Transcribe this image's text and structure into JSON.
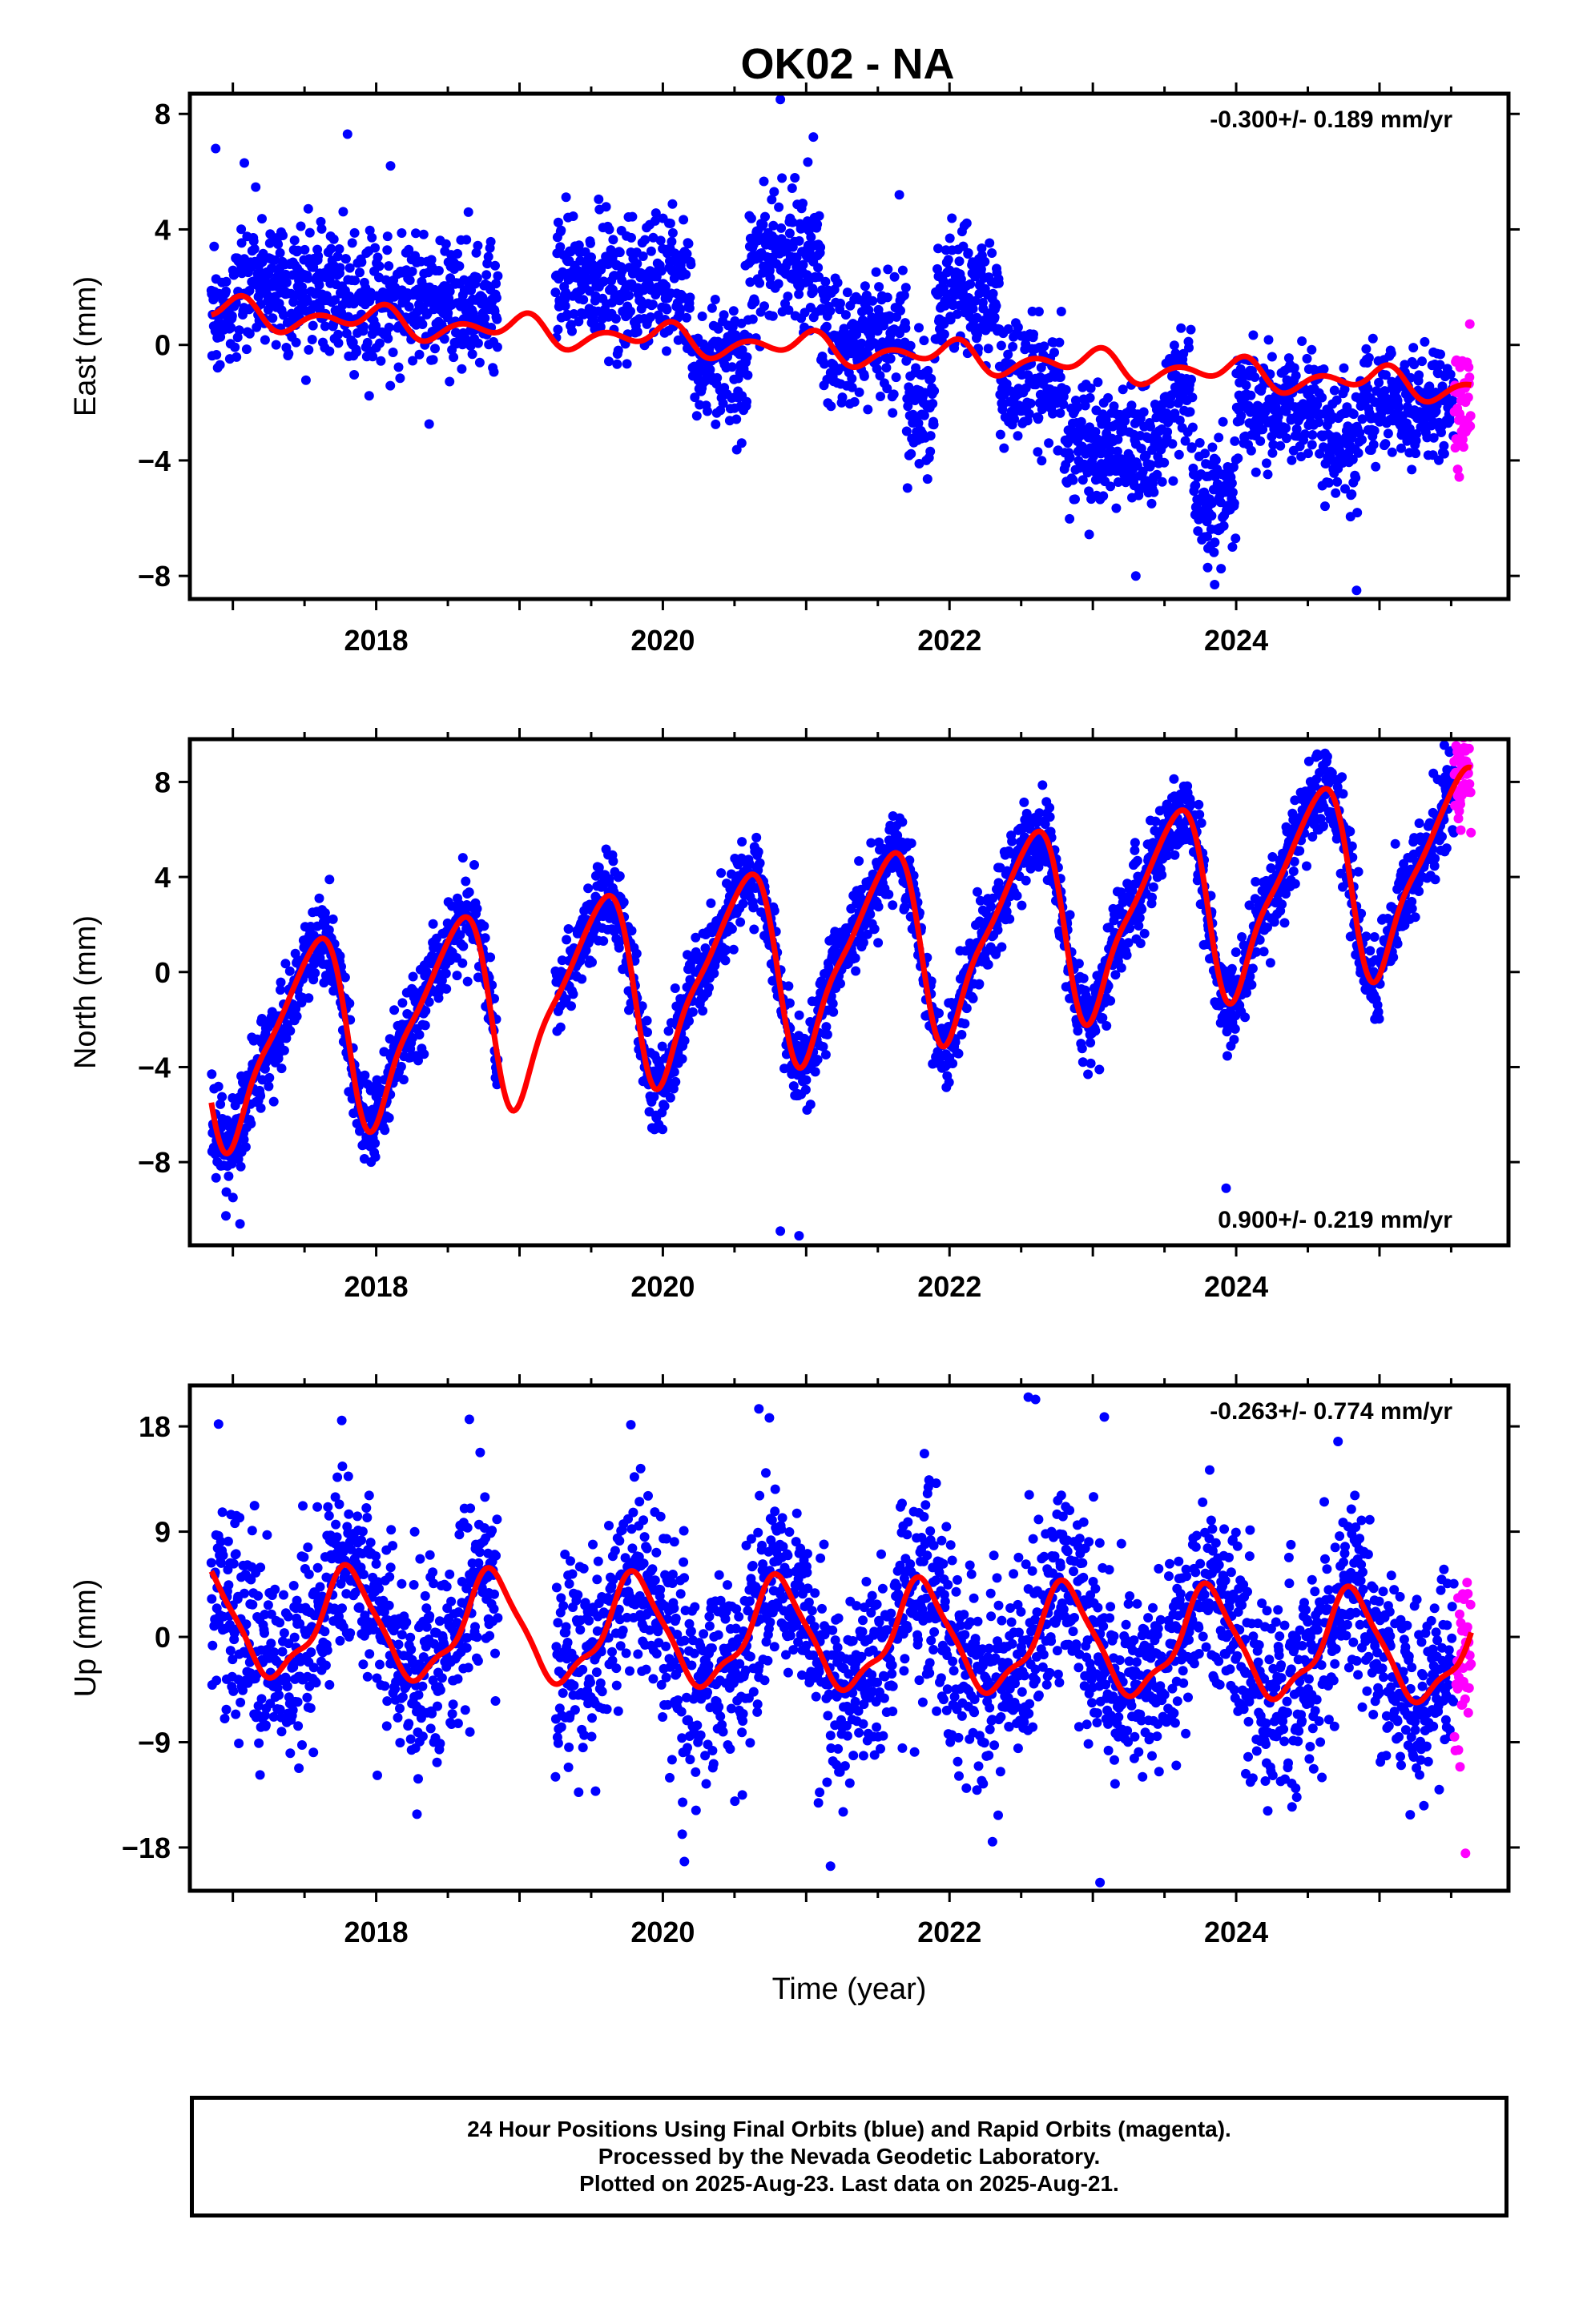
{
  "figure": {
    "title": "OK02 - NA"
  },
  "footer": {
    "line1": "24 Hour Positions Using Final Orbits (blue) and Rapid Orbits (magenta).",
    "line2": "Processed by the Nevada Geodetic Laboratory.",
    "line3": "Plotted on 2025-Aug-23. Last data on 2025-Aug-21."
  },
  "colors": {
    "final": "#0000ff",
    "rapid": "#ff00ff",
    "model": "#ff0000",
    "frame": "#000000"
  },
  "chart_data": [
    {
      "type": "scatter",
      "ylabel": "East (mm)",
      "xlim": [
        2016.7,
        2025.9
      ],
      "ylim": [
        -8.8,
        8.7
      ],
      "yticks": [
        -8,
        -4,
        0,
        4,
        8
      ],
      "xticks": [
        2018,
        2020,
        2022,
        2024
      ],
      "rate_label": "-0.300+/- 0.189 mm/yr",
      "rate_position": "top-right",
      "data_start": 2016.85,
      "data_end": 2025.64,
      "rapid_start": 2025.52,
      "gaps": [
        [
          2018.85,
          2019.25
        ]
      ],
      "model": {
        "offset": 1.1,
        "rate": -0.3,
        "annual_amp": 0.3,
        "annual_phase": 0.7,
        "semiannual_amp": 0.35,
        "semiannual_phase": 0.45,
        "sub_amp": 0.05,
        "ref_epoch": 2017.0
      },
      "scatter_segments": [
        [
          2016.85,
          2017.0,
          0.9,
          1.0
        ],
        [
          2017.0,
          2017.8,
          2.0,
          1.3
        ],
        [
          2017.8,
          2018.85,
          1.4,
          1.2
        ],
        [
          2019.25,
          2020.2,
          2.2,
          1.3
        ],
        [
          2020.2,
          2020.6,
          -0.6,
          1.0
        ],
        [
          2020.6,
          2021.1,
          2.8,
          1.3
        ],
        [
          2021.1,
          2021.7,
          0.2,
          1.2
        ],
        [
          2021.7,
          2021.9,
          -2.2,
          1.3
        ],
        [
          2021.9,
          2022.35,
          1.8,
          1.2
        ],
        [
          2022.35,
          2022.8,
          -1.2,
          1.2
        ],
        [
          2022.8,
          2023.5,
          -3.6,
          1.1
        ],
        [
          2023.5,
          2023.7,
          -1.8,
          1.2
        ],
        [
          2023.7,
          2024.0,
          -5.2,
          1.1
        ],
        [
          2024.0,
          2024.6,
          -2.0,
          1.1
        ],
        [
          2024.6,
          2024.85,
          -3.5,
          1.4
        ],
        [
          2024.85,
          2025.64,
          -2.0,
          1.0
        ]
      ],
      "outliers": [
        [
          2016.88,
          6.8
        ],
        [
          2017.08,
          6.3
        ],
        [
          2017.8,
          7.3
        ],
        [
          2018.1,
          6.2
        ],
        [
          2020.82,
          8.5
        ],
        [
          2021.05,
          7.2
        ],
        [
          2020.55,
          -3.4
        ],
        [
          2023.3,
          -8.0
        ],
        [
          2023.85,
          -8.3
        ],
        [
          2024.84,
          -8.5
        ],
        [
          2021.65,
          5.2
        ]
      ]
    },
    {
      "type": "scatter",
      "ylabel": "North (mm)",
      "xlim": [
        2016.7,
        2025.9
      ],
      "ylim": [
        -11.5,
        9.8
      ],
      "yticks": [
        -8,
        -4,
        0,
        4,
        8
      ],
      "xticks": [
        2018,
        2020,
        2022,
        2024
      ],
      "rate_label": "0.900+/- 0.219 mm/yr",
      "rate_position": "bottom-right",
      "data_start": 2016.85,
      "data_end": 2025.64,
      "rapid_start": 2025.52,
      "gaps": [
        [
          2018.85,
          2019.25
        ]
      ],
      "model": {
        "offset": -3.0,
        "rate": 0.9,
        "annual_amp": 3.7,
        "annual_phase": 0.28,
        "semiannual_amp": 1.2,
        "semiannual_phase": 0.05,
        "sub_amp": 0.25,
        "ref_epoch": 2017.0
      },
      "noise_sd": 0.9,
      "outliers": [
        [
          2017.05,
          -10.6
        ],
        [
          2020.82,
          -10.9
        ],
        [
          2020.95,
          -11.1
        ],
        [
          2023.93,
          -9.1
        ],
        [
          2025.6,
          9.3
        ]
      ]
    },
    {
      "type": "scatter",
      "ylabel": "Up (mm)",
      "xlim": [
        2016.7,
        2025.9
      ],
      "ylim": [
        -21.7,
        21.5
      ],
      "yticks": [
        -18,
        -9,
        0,
        9,
        18
      ],
      "xticks": [
        2018,
        2020,
        2022,
        2024
      ],
      "xlabel": "Time (year)",
      "rate_label": "-0.263+/- 0.774 mm/yr",
      "rate_position": "top-right",
      "data_start": 2016.85,
      "data_end": 2025.64,
      "rapid_start": 2025.52,
      "gaps": [
        [
          2018.85,
          2019.25
        ]
      ],
      "model": {
        "offset": 1.0,
        "rate": -0.263,
        "annual_amp": 4.4,
        "annual_phase": 0.55,
        "semiannual_amp": 0.6,
        "semiannual_phase": 0.2,
        "sub_amp": 0.6,
        "ref_epoch": 2017.0
      },
      "noise_sd": 4.2,
      "outliers": [
        [
          2016.9,
          18.2
        ],
        [
          2017.76,
          18.5
        ],
        [
          2018.65,
          18.6
        ],
        [
          2020.67,
          19.5
        ],
        [
          2022.55,
          20.5
        ],
        [
          2022.6,
          20.3
        ],
        [
          2023.08,
          18.8
        ],
        [
          2020.15,
          -19.2
        ],
        [
          2021.17,
          -19.6
        ],
        [
          2023.05,
          -21.0
        ],
        [
          2025.6,
          -18.5
        ],
        [
          2022.3,
          -17.5
        ]
      ]
    }
  ]
}
